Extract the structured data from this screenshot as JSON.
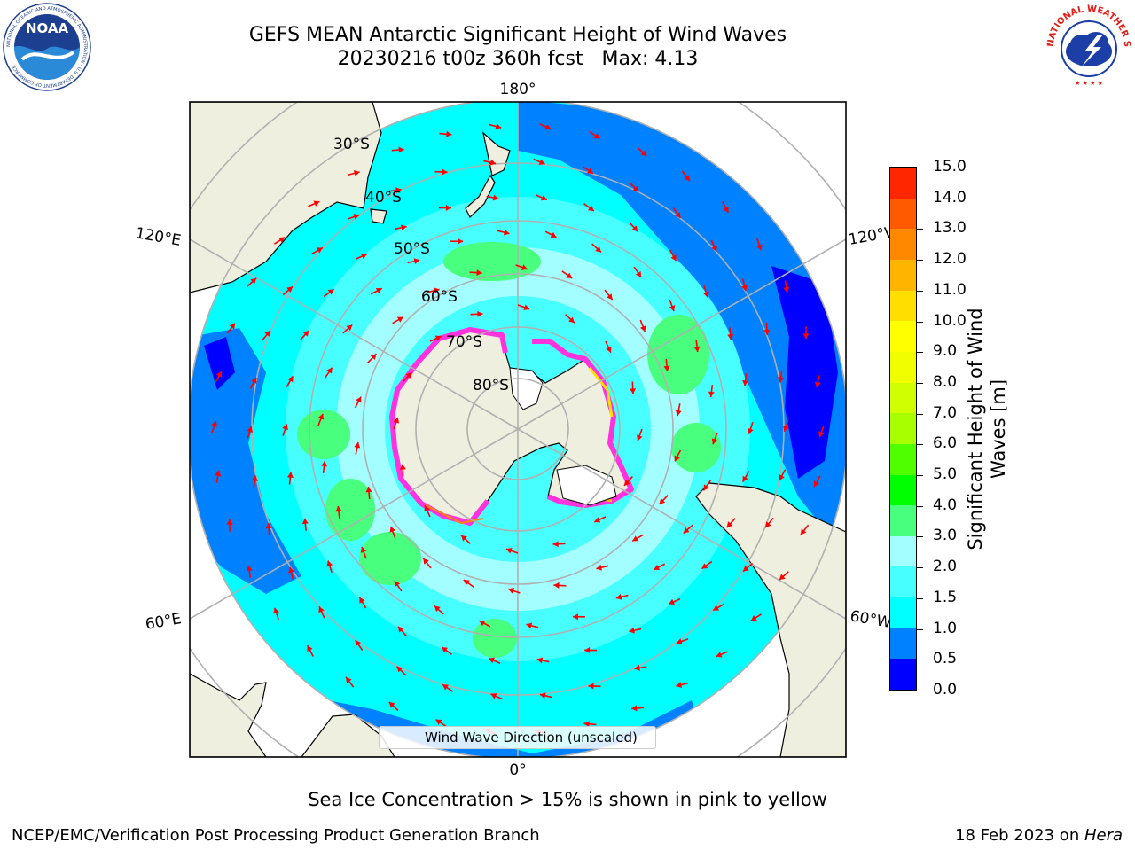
{
  "header": {
    "title_line1": "GEFS MEAN Antarctic Significant Height of Wind Waves",
    "title_line2": "20230216 t00z 360h fcst   Max: 4.13"
  },
  "logos": {
    "noaa": {
      "icon": "noaa-seal-icon",
      "text": "NOAA",
      "ring_text": "NATIONAL OCEANIC AND ATMOSPHERIC ADMINISTRATION · U.S. DEPARTMENT OF COMMERCE"
    },
    "nws": {
      "icon": "nws-seal-icon",
      "ring_text": "NATIONAL WEATHER SERVICE"
    }
  },
  "map": {
    "projection": "south polar stereographic",
    "latitude_labels": [
      "30°S",
      "40°S",
      "50°S",
      "60°S",
      "70°S",
      "80°S"
    ],
    "longitude_labels": {
      "top": "180°",
      "bottom": "0°",
      "upper_left": "120°E",
      "upper_right": "120°W",
      "lower_left": "60°E",
      "lower_right": "60°W"
    },
    "colors": {
      "land": "#efefdf",
      "ocean_low": "#0081ff",
      "ocean_mid": "#00ffff",
      "ocean_high": "#a3ffff",
      "arrows": "#ff0000",
      "grid": "#b0b0b0"
    }
  },
  "legend": {
    "label": "Wind Wave Direction (unscaled)"
  },
  "colorbar": {
    "title": "Significant Height of Wind Waves [m]",
    "title_line1": "Significant Height of Wind",
    "title_line2": "Waves [m]",
    "ticks": [
      "0.0",
      "0.5",
      "1.0",
      "1.5",
      "2.0",
      "3.0",
      "4.0",
      "5.0",
      "6.0",
      "7.0",
      "8.0",
      "9.0",
      "10.0",
      "11.0",
      "12.0",
      "13.0",
      "14.0",
      "15.0"
    ],
    "colors": [
      "#0000ff",
      "#0081ff",
      "#00ffff",
      "#48ffff",
      "#a3ffff",
      "#48ff7e",
      "#00ff00",
      "#4fff00",
      "#a8ff00",
      "#cfff00",
      "#f0ff00",
      "#ffff00",
      "#ffde00",
      "#ffb400",
      "#ff8800",
      "#ff5a00",
      "#ff2600"
    ]
  },
  "footnote": "Sea Ice Concentration > 15% is shown in pink to yellow",
  "footer": {
    "left": "NCEP/EMC/Verification Post Processing Product Generation Branch",
    "right_prefix": "18 Feb 2023 on ",
    "right_host": "Hera"
  }
}
